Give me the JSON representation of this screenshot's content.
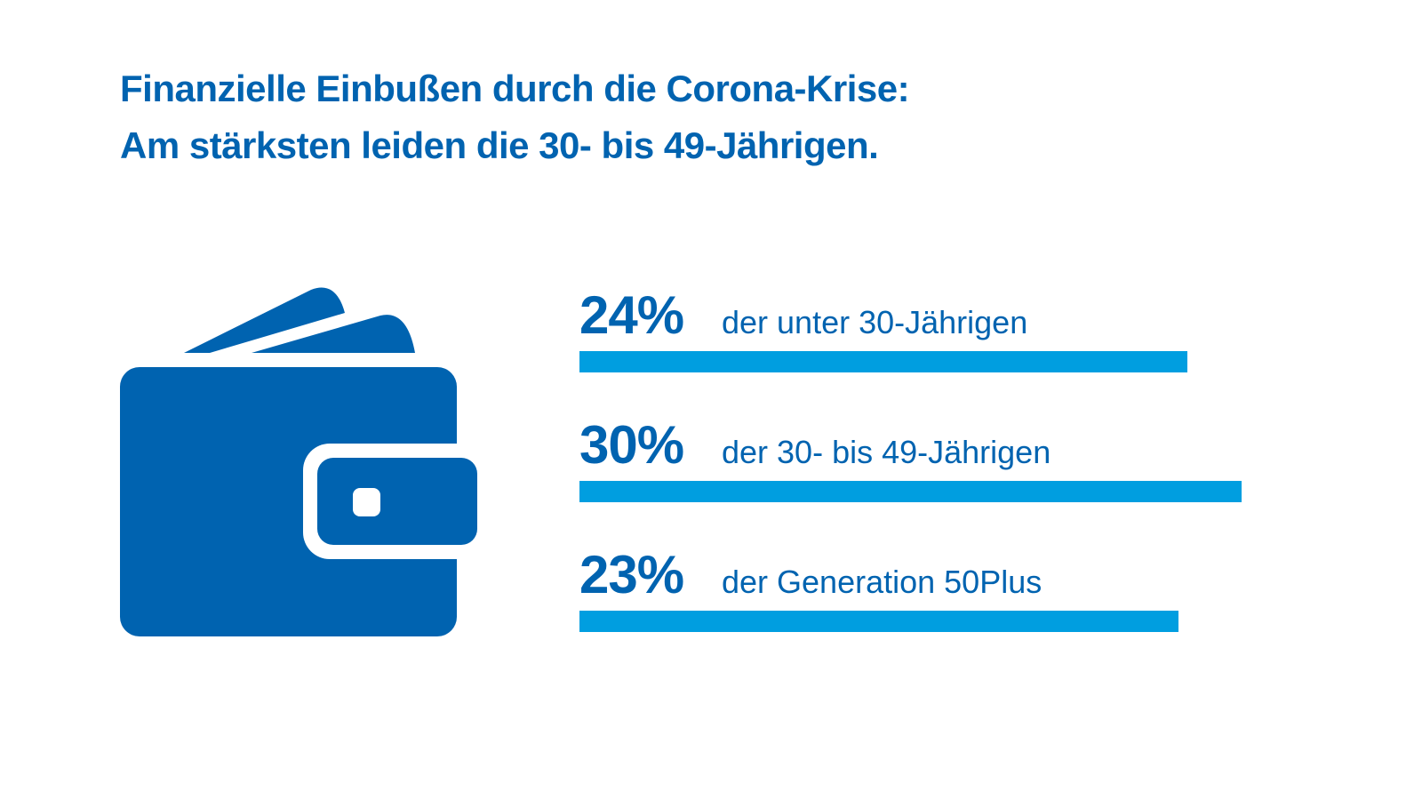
{
  "title": {
    "line1": "Finanzielle Einbußen durch die Corona-Krise:",
    "line2": "Am stärksten leiden die 30- bis 49-Jährigen."
  },
  "icon": "wallet-icon",
  "colors": {
    "text": "#0063b0",
    "bar": "#009ee0",
    "icon": "#0063b0"
  },
  "chart_data": {
    "type": "bar",
    "orientation": "horizontal",
    "categories": [
      "der unter 30-Jährigen",
      "der 30- bis 49-Jährigen",
      "der Generation 50Plus"
    ],
    "values": [
      24,
      30,
      23
    ],
    "value_labels": [
      "24%",
      "30%",
      "23%"
    ],
    "unit": "%",
    "grid": false
  }
}
